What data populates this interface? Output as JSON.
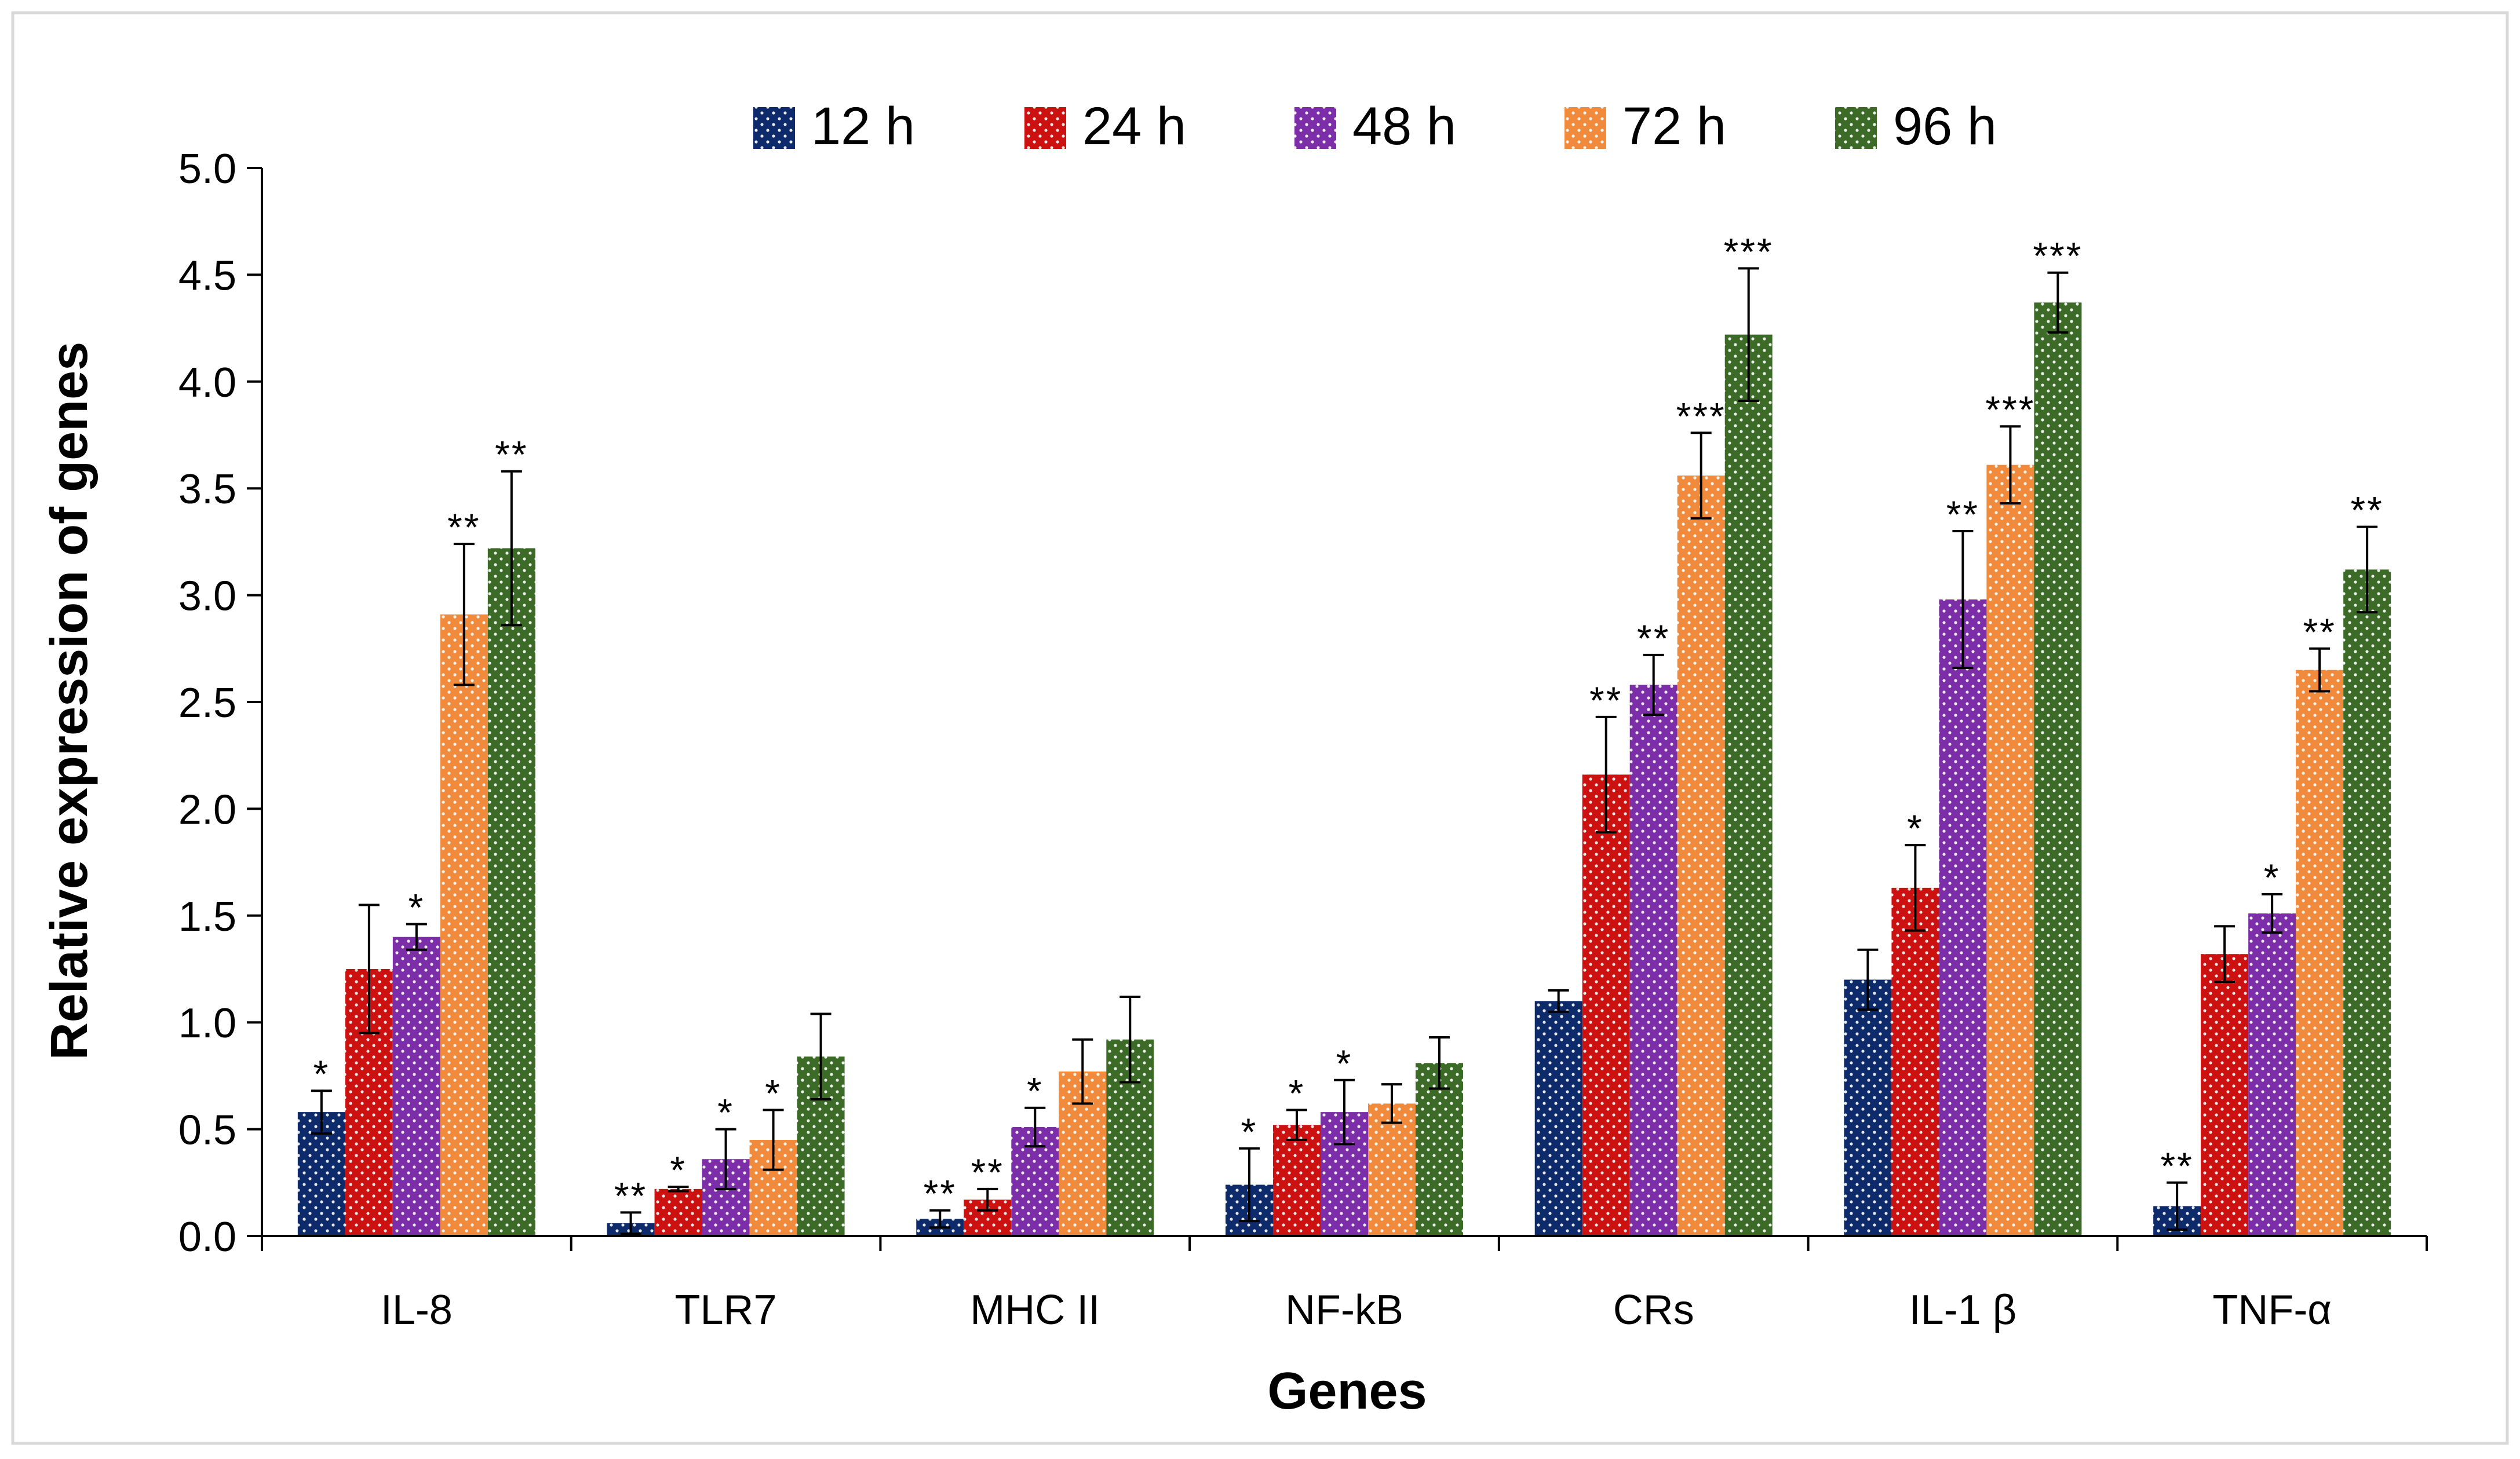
{
  "chart_data": {
    "type": "bar",
    "title": "",
    "xlabel": "Genes",
    "ylabel": "Relative expression of genes",
    "ylim": [
      0,
      5
    ],
    "yticks": [
      0,
      0.5,
      1,
      1.5,
      2,
      2.5,
      3,
      3.5,
      4,
      4.5,
      5
    ],
    "ytick_labels": [
      "0.0",
      "0.5",
      "1.0",
      "1.5",
      "2.0",
      "2.5",
      "3.0",
      "3.5",
      "4.0",
      "4.5",
      "5.0"
    ],
    "categories": [
      "IL-8",
      "TLR7",
      "MHC II",
      "NF-kB",
      "CRs",
      "IL-1 β",
      "TNF-α"
    ],
    "legend_position": "top",
    "series": [
      {
        "name": "12 h",
        "color": "#0d2a6b",
        "values": [
          0.58,
          0.06,
          0.08,
          0.24,
          1.1,
          1.2,
          0.14
        ],
        "errors": [
          0.1,
          0.05,
          0.04,
          0.17,
          0.05,
          0.14,
          0.11
        ],
        "significance": [
          "*",
          "**",
          "**",
          "*",
          "",
          "",
          "**"
        ]
      },
      {
        "name": "24 h",
        "color": "#cc1111",
        "values": [
          1.25,
          0.22,
          0.17,
          0.52,
          2.16,
          1.63,
          1.32
        ],
        "errors": [
          0.3,
          0.01,
          0.05,
          0.07,
          0.27,
          0.2,
          0.13
        ],
        "significance": [
          "",
          "*",
          "**",
          "*",
          "**",
          "*",
          ""
        ]
      },
      {
        "name": "48 h",
        "color": "#7b2ea8",
        "values": [
          1.4,
          0.36,
          0.51,
          0.58,
          2.58,
          2.98,
          1.51
        ],
        "errors": [
          0.06,
          0.14,
          0.09,
          0.15,
          0.14,
          0.32,
          0.09
        ],
        "significance": [
          "*",
          "*",
          "*",
          "*",
          "**",
          "**",
          "*"
        ]
      },
      {
        "name": "72 h",
        "color": "#f08a3c",
        "values": [
          2.91,
          0.45,
          0.77,
          0.62,
          3.56,
          3.61,
          2.65
        ],
        "errors": [
          0.33,
          0.14,
          0.15,
          0.09,
          0.2,
          0.18,
          0.1
        ],
        "significance": [
          "**",
          "*",
          "",
          "",
          "***",
          "***",
          "**"
        ]
      },
      {
        "name": "96 h",
        "color": "#3b6b27",
        "values": [
          3.22,
          0.84,
          0.92,
          0.81,
          4.22,
          4.37,
          3.12
        ],
        "errors": [
          0.36,
          0.2,
          0.2,
          0.12,
          0.31,
          0.14,
          0.2
        ],
        "significance": [
          "**",
          "",
          "",
          "",
          "***",
          "***",
          "**"
        ]
      }
    ]
  }
}
